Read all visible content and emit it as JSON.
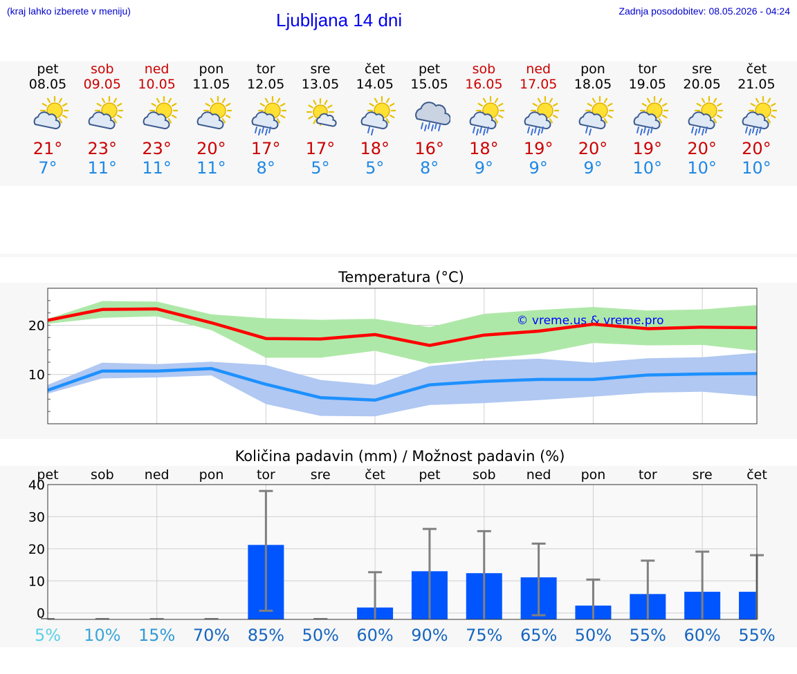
{
  "header": {
    "hint": "(kraj lahko izberete v meniju)",
    "title": "Ljubljana 14 dni",
    "updated": "Zadnja posodobitev: 08.05.2026 - 04:24"
  },
  "days": [
    {
      "name": "pet",
      "date": "08.05",
      "weekend": false,
      "icon": "sun-cloud-icon",
      "tmax": "21°",
      "tmin": "7°"
    },
    {
      "name": "sob",
      "date": "09.05",
      "weekend": true,
      "icon": "sun-cloud-icon",
      "tmax": "23°",
      "tmin": "11°"
    },
    {
      "name": "ned",
      "date": "10.05",
      "weekend": true,
      "icon": "sun-cloud-icon",
      "tmax": "23°",
      "tmin": "11°"
    },
    {
      "name": "pon",
      "date": "11.05",
      "weekend": false,
      "icon": "sun-cloud-icon",
      "tmax": "20°",
      "tmin": "11°"
    },
    {
      "name": "tor",
      "date": "12.05",
      "weekend": false,
      "icon": "sun-cloud-rain-icon",
      "tmax": "17°",
      "tmin": "8°"
    },
    {
      "name": "sre",
      "date": "13.05",
      "weekend": false,
      "icon": "sun-small-cloud-icon",
      "tmax": "17°",
      "tmin": "5°"
    },
    {
      "name": "čet",
      "date": "14.05",
      "weekend": false,
      "icon": "sun-cloud-light-rain-icon",
      "tmax": "18°",
      "tmin": "5°"
    },
    {
      "name": "pet",
      "date": "15.05",
      "weekend": false,
      "icon": "cloud-rain-icon",
      "tmax": "16°",
      "tmin": "8°"
    },
    {
      "name": "sob",
      "date": "16.05",
      "weekend": true,
      "icon": "sun-cloud-rain-icon",
      "tmax": "18°",
      "tmin": "9°"
    },
    {
      "name": "ned",
      "date": "17.05",
      "weekend": true,
      "icon": "sun-cloud-rain-icon",
      "tmax": "19°",
      "tmin": "9°"
    },
    {
      "name": "pon",
      "date": "18.05",
      "weekend": false,
      "icon": "sun-cloud-light-rain-icon",
      "tmax": "20°",
      "tmin": "9°"
    },
    {
      "name": "tor",
      "date": "19.05",
      "weekend": false,
      "icon": "sun-cloud-rain-icon",
      "tmax": "19°",
      "tmin": "10°"
    },
    {
      "name": "sre",
      "date": "20.05",
      "weekend": false,
      "icon": "sun-cloud-rain-icon",
      "tmax": "20°",
      "tmin": "10°"
    },
    {
      "name": "čet",
      "date": "21.05",
      "weekend": false,
      "icon": "sun-cloud-rain-icon",
      "tmax": "20°",
      "tmin": "10°"
    }
  ],
  "colors": {
    "max_line": "#ff0000",
    "max_band": "#aee8a8",
    "min_line": "#1e90ff",
    "min_band": "#b0c8f2",
    "bar": "#0055ff",
    "error_bar": "#808080",
    "weekend": "#cc0000"
  },
  "chart_data": [
    {
      "type": "line",
      "title": "Temperatura (°C)",
      "watermark": "© vreme.us & vreme.pro",
      "x": [
        "08.05",
        "09.05",
        "10.05",
        "11.05",
        "12.05",
        "13.05",
        "14.05",
        "15.05",
        "16.05",
        "17.05",
        "18.05",
        "19.05",
        "20.05",
        "21.05"
      ],
      "ylim": [
        0,
        27.5
      ],
      "yticks": [
        10,
        20
      ],
      "grid": true,
      "series": [
        {
          "key": "max",
          "values": [
            21.0,
            23.2,
            23.3,
            20.5,
            17.3,
            17.2,
            18.1,
            15.9,
            18.0,
            18.8,
            20.2,
            19.3,
            19.6,
            19.5
          ],
          "band_low": [
            20.3,
            21.5,
            21.8,
            19.0,
            13.4,
            13.4,
            14.8,
            12.2,
            13.2,
            14.2,
            16.4,
            15.9,
            16.0,
            14.8
          ],
          "band_high": [
            21.3,
            24.9,
            24.8,
            22.2,
            21.4,
            21.1,
            21.3,
            19.6,
            22.3,
            23.1,
            23.7,
            23.0,
            23.2,
            24.1
          ]
        },
        {
          "key": "min",
          "values": [
            6.8,
            10.7,
            10.7,
            11.2,
            8.0,
            5.3,
            4.8,
            7.9,
            8.6,
            9.0,
            9.0,
            9.9,
            10.1,
            10.2
          ],
          "band_low": [
            6.1,
            9.2,
            9.4,
            9.8,
            4.0,
            1.6,
            1.5,
            3.8,
            4.2,
            4.8,
            5.5,
            6.3,
            6.5,
            5.6
          ],
          "band_high": [
            7.9,
            12.4,
            12.1,
            12.6,
            11.9,
            8.9,
            7.9,
            11.7,
            12.8,
            13.2,
            12.4,
            13.3,
            13.5,
            14.4
          ]
        }
      ]
    },
    {
      "type": "bar",
      "title": "Količina padavin (mm) / Možnost padavin (%)",
      "categories": [
        "pet",
        "sob",
        "ned",
        "pon",
        "tor",
        "sre",
        "čet",
        "pet",
        "sob",
        "ned",
        "pon",
        "tor",
        "sre",
        "čet"
      ],
      "ylim": [
        -2,
        40
      ],
      "yticks": [
        0,
        10,
        20,
        30,
        40
      ],
      "grid": true,
      "values": [
        0,
        0,
        0,
        0,
        21.2,
        0,
        1.7,
        13.0,
        12.4,
        11.1,
        2.3,
        5.9,
        6.6,
        6.6
      ],
      "error_low": [
        0,
        0,
        0,
        0,
        0.7,
        0,
        0,
        0,
        0,
        -0.7,
        0,
        0,
        0,
        0
      ],
      "error_high": [
        0,
        0,
        0,
        0,
        38.0,
        0,
        12.7,
        26.2,
        25.5,
        21.6,
        10.4,
        16.3,
        19.1,
        18.0
      ],
      "probability": [
        "5%",
        "10%",
        "15%",
        "70%",
        "85%",
        "50%",
        "60%",
        "90%",
        "75%",
        "65%",
        "50%",
        "55%",
        "60%",
        "55%"
      ],
      "probability_colors": [
        "#5bd0e6",
        "#3aa6d8",
        "#2f9ad6",
        "#1565c0",
        "#1565c0",
        "#1565c0",
        "#1565c0",
        "#1565c0",
        "#1565c0",
        "#1565c0",
        "#1565c0",
        "#1565c0",
        "#1565c0",
        "#1565c0"
      ]
    }
  ]
}
